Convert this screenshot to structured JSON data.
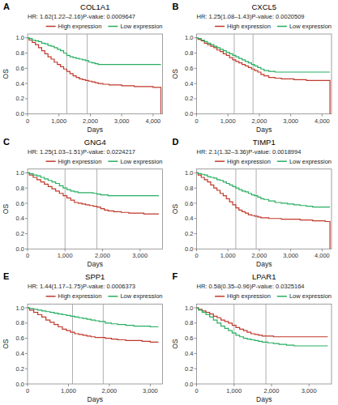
{
  "chart_data": [
    {
      "type": "step",
      "title": "COL1A1",
      "annotations": [
        "A",
        "HR: 1.62(1.22–2.16)P-value: 0.0009647"
      ],
      "x_label": "Days",
      "y_label": "OS",
      "legend": "upper right",
      "vlines": [
        1250,
        1900
      ],
      "xlim": [
        0,
        4300
      ],
      "ylim": [
        0.0,
        1.05
      ],
      "xticks": [
        0,
        {
          "value": 1000,
          "label": "1,000"
        },
        {
          "value": 2000,
          "label": "2,000"
        },
        {
          "value": 3000,
          "label": "3,000"
        },
        {
          "value": 4000,
          "label": "4,000"
        }
      ],
      "yticks": [
        {
          "value": 0,
          "label": "0.0"
        },
        0.2,
        0.4,
        0.6,
        0.8,
        {
          "value": 1,
          "label": "1.0"
        }
      ],
      "x": [
        0,
        50,
        150,
        250,
        350,
        450,
        550,
        650,
        750,
        850,
        950,
        1050,
        1150,
        1250,
        1350,
        1450,
        1550,
        1650,
        1750,
        1850,
        1950,
        2050,
        2150,
        2250,
        2400,
        2600,
        2800,
        3000,
        3200,
        3400,
        3600,
        3800,
        4000,
        4100,
        4250
      ],
      "series": [
        {
          "name": "High expression",
          "color": "#c0392b",
          "values": [
            1.0,
            0.97,
            0.94,
            0.91,
            0.87,
            0.83,
            0.79,
            0.75,
            0.72,
            0.68,
            0.65,
            0.62,
            0.59,
            0.56,
            0.53,
            0.5,
            0.48,
            0.46,
            0.45,
            0.44,
            0.43,
            0.42,
            0.41,
            0.4,
            0.39,
            0.38,
            0.38,
            0.37,
            0.37,
            0.36,
            0.36,
            0.36,
            0.35,
            0.35,
            0.0
          ]
        },
        {
          "name": "Low expression",
          "color": "#27ae60",
          "values": [
            1.0,
            0.99,
            0.97,
            0.96,
            0.95,
            0.93,
            0.92,
            0.9,
            0.89,
            0.87,
            0.85,
            0.83,
            0.8,
            0.77,
            0.75,
            0.74,
            0.73,
            0.72,
            0.71,
            0.7,
            0.68,
            0.67,
            0.66,
            0.65,
            0.65,
            0.65,
            0.65,
            0.65,
            0.65,
            0.65,
            0.65,
            0.65,
            0.65,
            0.65,
            0.65
          ]
        }
      ]
    },
    {
      "type": "step",
      "title": "CXCL5",
      "annotations": [
        "B",
        "HR: 1.25(1.08–1.43)P-value: 0.0020509"
      ],
      "x_label": "Days",
      "y_label": "OS",
      "legend": "upper right",
      "vlines": [
        1200,
        1800
      ],
      "xlim": [
        0,
        4300
      ],
      "ylim": [
        0.0,
        1.05
      ],
      "xticks": [
        0,
        {
          "value": 1000,
          "label": "1,000"
        },
        {
          "value": 2000,
          "label": "2,000"
        },
        {
          "value": 3000,
          "label": "3,000"
        },
        {
          "value": 4000,
          "label": "4,000"
        }
      ],
      "yticks": [
        {
          "value": 0,
          "label": "0.0"
        },
        0.2,
        0.4,
        0.6,
        0.8,
        {
          "value": 1,
          "label": "1.0"
        }
      ],
      "x": [
        0,
        50,
        150,
        250,
        350,
        450,
        550,
        650,
        750,
        850,
        950,
        1050,
        1150,
        1250,
        1350,
        1450,
        1550,
        1650,
        1750,
        1850,
        1950,
        2050,
        2150,
        2300,
        2500,
        2700,
        2900,
        3100,
        3300,
        3500,
        3700,
        3900,
        4100,
        4250
      ],
      "series": [
        {
          "name": "High expression",
          "color": "#c0392b",
          "values": [
            1.0,
            0.98,
            0.96,
            0.93,
            0.91,
            0.89,
            0.87,
            0.84,
            0.82,
            0.79,
            0.77,
            0.74,
            0.71,
            0.69,
            0.67,
            0.65,
            0.63,
            0.61,
            0.59,
            0.57,
            0.55,
            0.52,
            0.5,
            0.48,
            0.47,
            0.46,
            0.46,
            0.45,
            0.45,
            0.44,
            0.44,
            0.44,
            0.44,
            0.0
          ]
        },
        {
          "name": "Low expression",
          "color": "#27ae60",
          "values": [
            1.0,
            0.99,
            0.97,
            0.95,
            0.93,
            0.91,
            0.89,
            0.87,
            0.85,
            0.83,
            0.81,
            0.79,
            0.77,
            0.75,
            0.73,
            0.71,
            0.69,
            0.67,
            0.65,
            0.63,
            0.61,
            0.59,
            0.57,
            0.56,
            0.55,
            0.55,
            0.55,
            0.55,
            0.55,
            0.55,
            0.55,
            0.55,
            0.55,
            0.55
          ]
        }
      ]
    },
    {
      "type": "step",
      "title": "GNG4",
      "annotations": [
        "C",
        "HR: 1.25(1.03–1.51)P-value: 0.0224217"
      ],
      "x_label": "Days",
      "y_label": "OS",
      "legend": "upper right",
      "vlines": [
        1000,
        1850
      ],
      "xlim": [
        0,
        3600
      ],
      "ylim": [
        0.0,
        1.05
      ],
      "xticks": [
        0,
        {
          "value": 1000,
          "label": "1,000"
        },
        {
          "value": 2000,
          "label": "2,000"
        },
        {
          "value": 3000,
          "label": "3,000"
        }
      ],
      "yticks": [
        {
          "value": 0,
          "label": "0.0"
        },
        0.2,
        0.4,
        0.6,
        0.8,
        {
          "value": 1,
          "label": "1.0"
        }
      ],
      "x": [
        0,
        50,
        150,
        250,
        350,
        450,
        550,
        650,
        750,
        850,
        950,
        1050,
        1150,
        1250,
        1350,
        1450,
        1550,
        1650,
        1750,
        1850,
        1950,
        2050,
        2150,
        2300,
        2500,
        2700,
        2900,
        3100,
        3300,
        3500
      ],
      "series": [
        {
          "name": "High expression",
          "color": "#c0392b",
          "values": [
            1.0,
            0.97,
            0.94,
            0.91,
            0.88,
            0.85,
            0.82,
            0.79,
            0.76,
            0.73,
            0.7,
            0.67,
            0.64,
            0.61,
            0.6,
            0.59,
            0.58,
            0.57,
            0.56,
            0.55,
            0.53,
            0.51,
            0.5,
            0.49,
            0.48,
            0.47,
            0.47,
            0.46,
            0.46,
            0.46
          ]
        },
        {
          "name": "Low expression",
          "color": "#27ae60",
          "values": [
            1.0,
            0.99,
            0.97,
            0.96,
            0.94,
            0.92,
            0.9,
            0.88,
            0.86,
            0.83,
            0.8,
            0.78,
            0.76,
            0.75,
            0.74,
            0.74,
            0.74,
            0.74,
            0.73,
            0.72,
            0.71,
            0.71,
            0.7,
            0.7,
            0.7,
            0.7,
            0.7,
            0.7,
            0.7,
            0.7
          ]
        }
      ]
    },
    {
      "type": "step",
      "title": "TIMP1",
      "annotations": [
        "D",
        "HR: 2.1(1.32–3.36)P-value: 0.0018994"
      ],
      "x_label": "Days",
      "y_label": "OS",
      "legend": "upper right",
      "vlines": [
        1250,
        1900
      ],
      "xlim": [
        0,
        4300
      ],
      "ylim": [
        0.0,
        1.05
      ],
      "xticks": [
        0,
        {
          "value": 1000,
          "label": "1,000"
        },
        {
          "value": 2000,
          "label": "2,000"
        },
        {
          "value": 3000,
          "label": "3,000"
        },
        {
          "value": 4000,
          "label": "4,000"
        }
      ],
      "yticks": [
        {
          "value": 0,
          "label": "0.0"
        },
        0.2,
        0.4,
        0.6,
        0.8,
        {
          "value": 1,
          "label": "1.0"
        }
      ],
      "x": [
        0,
        50,
        150,
        250,
        350,
        450,
        550,
        650,
        750,
        850,
        950,
        1050,
        1150,
        1250,
        1350,
        1450,
        1550,
        1650,
        1750,
        1850,
        1950,
        2050,
        2150,
        2300,
        2500,
        2700,
        2900,
        3100,
        3300,
        3500,
        3700,
        3900,
        4100,
        4250
      ],
      "series": [
        {
          "name": "High expression",
          "color": "#c0392b",
          "values": [
            1.0,
            0.97,
            0.94,
            0.91,
            0.88,
            0.84,
            0.8,
            0.77,
            0.73,
            0.7,
            0.66,
            0.62,
            0.58,
            0.54,
            0.51,
            0.49,
            0.47,
            0.45,
            0.44,
            0.43,
            0.42,
            0.41,
            0.41,
            0.4,
            0.4,
            0.39,
            0.39,
            0.39,
            0.38,
            0.38,
            0.37,
            0.37,
            0.36,
            0.0
          ]
        },
        {
          "name": "Low expression",
          "color": "#27ae60",
          "values": [
            1.0,
            0.99,
            0.98,
            0.97,
            0.95,
            0.94,
            0.93,
            0.91,
            0.9,
            0.88,
            0.86,
            0.84,
            0.82,
            0.8,
            0.78,
            0.76,
            0.75,
            0.73,
            0.71,
            0.7,
            0.68,
            0.66,
            0.65,
            0.63,
            0.61,
            0.6,
            0.59,
            0.58,
            0.57,
            0.56,
            0.55,
            0.55,
            0.55,
            0.55
          ]
        }
      ]
    },
    {
      "type": "step",
      "title": "SPP1",
      "annotations": [
        "E",
        "HR: 1.44(1.17–1.75)P-value: 0.0006373"
      ],
      "x_label": "Days",
      "y_label": "OS",
      "legend": "upper right",
      "vlines": [
        1100,
        1850
      ],
      "xlim": [
        0,
        3300
      ],
      "ylim": [
        0.0,
        1.05
      ],
      "xticks": [
        0,
        {
          "value": 1000,
          "label": "1,000"
        },
        {
          "value": 2000,
          "label": "2,000"
        },
        {
          "value": 3000,
          "label": "3,000"
        }
      ],
      "yticks": [
        {
          "value": 0,
          "label": "0.0"
        },
        0.2,
        0.4,
        0.6,
        0.8,
        {
          "value": 1,
          "label": "1.0"
        }
      ],
      "x": [
        0,
        50,
        150,
        250,
        350,
        450,
        550,
        650,
        750,
        850,
        950,
        1050,
        1150,
        1250,
        1350,
        1450,
        1550,
        1650,
        1750,
        1900,
        2050,
        2200,
        2400,
        2600,
        2800,
        3000,
        3200
      ],
      "series": [
        {
          "name": "High expression",
          "color": "#c0392b",
          "values": [
            1.0,
            0.97,
            0.94,
            0.91,
            0.88,
            0.84,
            0.81,
            0.78,
            0.75,
            0.72,
            0.7,
            0.68,
            0.66,
            0.65,
            0.64,
            0.63,
            0.62,
            0.61,
            0.61,
            0.6,
            0.59,
            0.58,
            0.57,
            0.57,
            0.56,
            0.55,
            0.55
          ]
        },
        {
          "name": "Low expression",
          "color": "#27ae60",
          "values": [
            1.0,
            0.99,
            0.98,
            0.97,
            0.96,
            0.95,
            0.94,
            0.93,
            0.92,
            0.91,
            0.9,
            0.89,
            0.88,
            0.87,
            0.86,
            0.85,
            0.84,
            0.83,
            0.82,
            0.8,
            0.79,
            0.78,
            0.77,
            0.76,
            0.76,
            0.75,
            0.75
          ]
        }
      ]
    },
    {
      "type": "step",
      "title": "LPAR1",
      "annotations": [
        "F",
        "HR: 0.58(0.35–0.96)P-value: 0.0325164"
      ],
      "x_label": "Days",
      "y_label": "OS",
      "legend": "upper right",
      "vlines": [
        1000,
        1850
      ],
      "xlim": [
        0,
        3600
      ],
      "ylim": [
        0.0,
        1.05
      ],
      "xticks": [
        0,
        {
          "value": 1000,
          "label": "1,000"
        },
        {
          "value": 2000,
          "label": "2,000"
        },
        {
          "value": 3000,
          "label": "3,000"
        }
      ],
      "yticks": [
        {
          "value": 0,
          "label": "0.0"
        },
        0.2,
        0.4,
        0.6,
        0.8,
        {
          "value": 1,
          "label": "1.0"
        }
      ],
      "x": [
        0,
        50,
        150,
        250,
        350,
        450,
        550,
        650,
        750,
        850,
        950,
        1050,
        1150,
        1250,
        1350,
        1450,
        1550,
        1650,
        1750,
        1900,
        2050,
        2200,
        2400,
        2600,
        2800,
        3000,
        3200,
        3500
      ],
      "series": [
        {
          "name": "High expression",
          "color": "#c0392b",
          "values": [
            1.0,
            0.98,
            0.96,
            0.94,
            0.92,
            0.89,
            0.87,
            0.84,
            0.82,
            0.8,
            0.77,
            0.74,
            0.72,
            0.7,
            0.68,
            0.66,
            0.65,
            0.64,
            0.63,
            0.63,
            0.62,
            0.62,
            0.62,
            0.62,
            0.62,
            0.62,
            0.62,
            0.62
          ]
        },
        {
          "name": "Low expression",
          "color": "#27ae60",
          "values": [
            1.0,
            0.97,
            0.94,
            0.91,
            0.88,
            0.84,
            0.8,
            0.76,
            0.73,
            0.7,
            0.67,
            0.64,
            0.62,
            0.6,
            0.59,
            0.58,
            0.57,
            0.56,
            0.55,
            0.54,
            0.53,
            0.52,
            0.51,
            0.5,
            0.5,
            0.5,
            0.5,
            0.5
          ]
        }
      ]
    }
  ]
}
